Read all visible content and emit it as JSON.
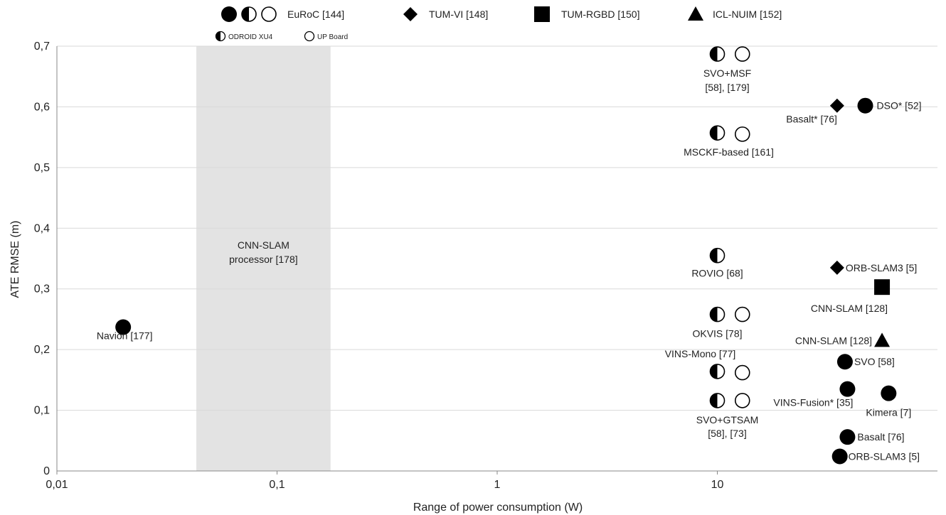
{
  "chart_data": {
    "type": "scatter",
    "xlabel": "Range of power consumption (W)",
    "ylabel": "ATE RMSE (m)",
    "x_scale": "log",
    "xlim": [
      0.01,
      100
    ],
    "ylim": [
      0,
      0.7
    ],
    "x_ticks": [
      {
        "value": 0.01,
        "label": "0,01"
      },
      {
        "value": 0.1,
        "label": "0,1"
      },
      {
        "value": 1,
        "label": "1"
      },
      {
        "value": 10,
        "label": "10"
      }
    ],
    "y_ticks": [
      {
        "value": 0,
        "label": "0"
      },
      {
        "value": 0.1,
        "label": "0,1"
      },
      {
        "value": 0.2,
        "label": "0,2"
      },
      {
        "value": 0.3,
        "label": "0,3"
      },
      {
        "value": 0.4,
        "label": "0,4"
      },
      {
        "value": 0.5,
        "label": "0,5"
      },
      {
        "value": 0.6,
        "label": "0,6"
      },
      {
        "value": 0.7,
        "label": "0,7"
      }
    ],
    "grid": "horizontal",
    "legend": {
      "position": "top",
      "entries": [
        {
          "marker": "circle-group",
          "label": "EuRoC [144]"
        },
        {
          "marker": "diamond",
          "label": "TUM-VI [148]"
        },
        {
          "marker": "square",
          "label": "TUM-RGBD [150]"
        },
        {
          "marker": "triangle",
          "label": "ICL-NUIM [152]"
        }
      ],
      "platforms": [
        {
          "marker": "half-circle",
          "label": "ODROID XU4"
        },
        {
          "marker": "open-circle",
          "label": "UP Board"
        }
      ]
    },
    "shaded_band": {
      "x_range": [
        0.043,
        0.175
      ],
      "label_lines": [
        "CNN-SLAM",
        "processor [178]"
      ]
    },
    "points": [
      {
        "x": 0.02,
        "y": 0.237,
        "marker": "filled-circle"
      },
      {
        "x": 10,
        "y": 0.687,
        "marker": "half-circle"
      },
      {
        "x": 13,
        "y": 0.687,
        "marker": "open-circle"
      },
      {
        "x": 35,
        "y": 0.602,
        "marker": "diamond"
      },
      {
        "x": 47,
        "y": 0.602,
        "marker": "filled-circle"
      },
      {
        "x": 10,
        "y": 0.557,
        "marker": "half-circle"
      },
      {
        "x": 13,
        "y": 0.555,
        "marker": "open-circle"
      },
      {
        "x": 10,
        "y": 0.355,
        "marker": "half-circle"
      },
      {
        "x": 35,
        "y": 0.335,
        "marker": "diamond"
      },
      {
        "x": 56,
        "y": 0.303,
        "marker": "square"
      },
      {
        "x": 10,
        "y": 0.258,
        "marker": "half-circle"
      },
      {
        "x": 13,
        "y": 0.258,
        "marker": "open-circle"
      },
      {
        "x": 56,
        "y": 0.215,
        "marker": "triangle"
      },
      {
        "x": 38,
        "y": 0.18,
        "marker": "filled-circle"
      },
      {
        "x": 10,
        "y": 0.164,
        "marker": "half-circle"
      },
      {
        "x": 13,
        "y": 0.162,
        "marker": "open-circle"
      },
      {
        "x": 39,
        "y": 0.135,
        "marker": "filled-circle"
      },
      {
        "x": 60,
        "y": 0.128,
        "marker": "filled-circle"
      },
      {
        "x": 10,
        "y": 0.116,
        "marker": "half-circle"
      },
      {
        "x": 13,
        "y": 0.116,
        "marker": "open-circle"
      },
      {
        "x": 39,
        "y": 0.056,
        "marker": "filled-circle"
      },
      {
        "x": 36,
        "y": 0.024,
        "marker": "filled-circle"
      }
    ],
    "point_labels": [
      {
        "text": "Navion [177]",
        "x": 0.02,
        "y": 0.237
      },
      {
        "text": "SVO+MSF",
        "x": 10,
        "y": 0.687
      },
      {
        "text": "[58], [179]",
        "x": 10,
        "y": 0.687
      },
      {
        "text": "Basalt* [76]",
        "x": 35,
        "y": 0.602
      },
      {
        "text": "DSO* [52]",
        "x": 47,
        "y": 0.602
      },
      {
        "text": "MSCKF-based [161]",
        "x": 10,
        "y": 0.557
      },
      {
        "text": "ROVIO [68]",
        "x": 10,
        "y": 0.355
      },
      {
        "text": "ORB-SLAM3 [5]",
        "x": 35,
        "y": 0.335
      },
      {
        "text": "CNN-SLAM [128]",
        "x": 56,
        "y": 0.303
      },
      {
        "text": "OKVIS [78]",
        "x": 10,
        "y": 0.258
      },
      {
        "text": "CNN-SLAM [128]",
        "x": 56,
        "y": 0.215
      },
      {
        "text": "VINS-Mono [77]",
        "x": 10,
        "y": 0.164
      },
      {
        "text": "SVO [58]",
        "x": 38,
        "y": 0.18
      },
      {
        "text": "VINS-Fusion* [35]",
        "x": 39,
        "y": 0.135
      },
      {
        "text": "Kimera [7]",
        "x": 60,
        "y": 0.128
      },
      {
        "text": "SVO+GTSAM",
        "x": 10,
        "y": 0.116
      },
      {
        "text": "[58], [73]",
        "x": 10,
        "y": 0.116
      },
      {
        "text": "Basalt [76]",
        "x": 39,
        "y": 0.056
      },
      {
        "text": "ORB-SLAM3 [5]",
        "x": 36,
        "y": 0.024
      }
    ],
    "colors": {
      "marker": "#000000",
      "grid": "#d9d9d9",
      "band": "#e3e3e3",
      "axis": "#888888"
    }
  }
}
